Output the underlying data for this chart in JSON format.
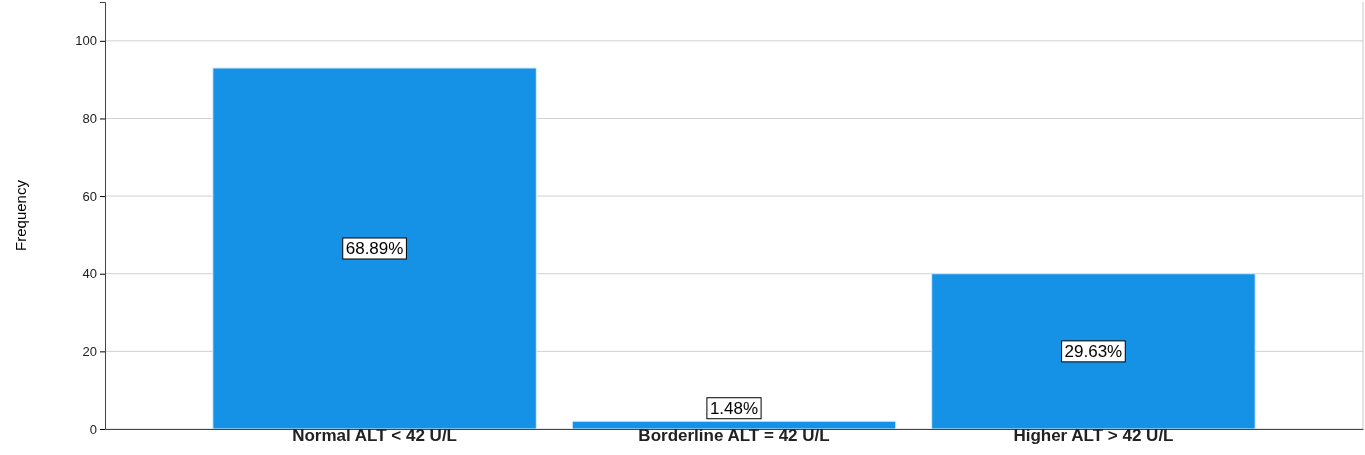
{
  "chart_data": {
    "type": "bar",
    "ylabel": "Frequency",
    "categories": [
      "Normal ALT < 42 U/L",
      "Borderline ALT = 42 U/L",
      "Higher ALT > 42 U/L"
    ],
    "values": [
      93,
      2,
      40
    ],
    "annotations": [
      "68.89%",
      "1.48%",
      "29.63%"
    ],
    "color": "#1591e6",
    "ylim": [
      0,
      110
    ],
    "yticks": [
      0,
      20,
      40,
      60,
      80,
      100
    ],
    "grid": "y"
  }
}
